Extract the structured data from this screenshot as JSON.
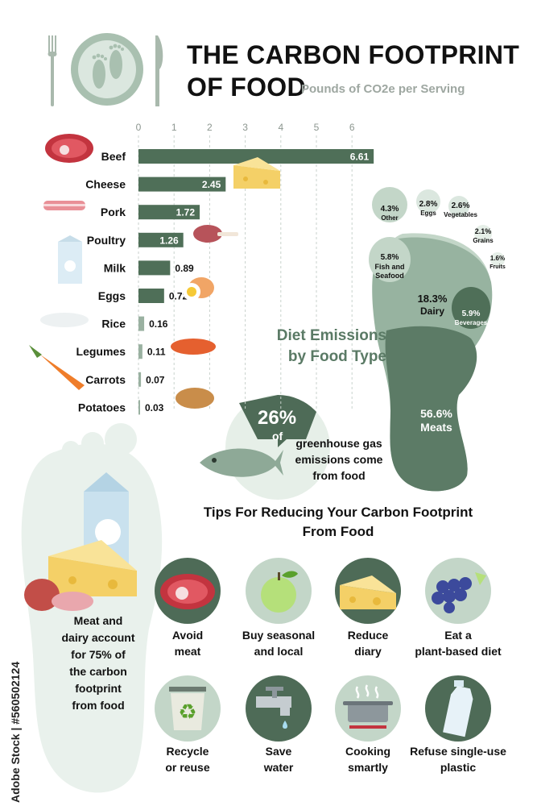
{
  "header": {
    "title_line1": "THE CARBON FOOTPRINT",
    "title_line2": "OF FOOD",
    "subtitle": "Pounds of CO2e per Serving"
  },
  "chart_data": [
    {
      "type": "bar",
      "orientation": "horizontal",
      "title": "THE CARBON FOOTPRINT OF FOOD",
      "subtitle": "Pounds of CO2e per Serving",
      "categories": [
        "Beef",
        "Cheese",
        "Pork",
        "Poultry",
        "Milk",
        "Eggs",
        "Rice",
        "Legumes",
        "Carrots",
        "Potatoes"
      ],
      "values": [
        6.61,
        2.45,
        1.72,
        1.26,
        0.89,
        0.72,
        0.16,
        0.11,
        0.07,
        0.03
      ],
      "value_labels": [
        "6.61",
        "2.45",
        "1.72",
        "1.26",
        "0.89",
        "0.72",
        "0.16",
        "0.11",
        "0.07",
        "0.03"
      ],
      "xticks": [
        "0",
        "1",
        "2",
        "3",
        "4",
        "5",
        "6"
      ],
      "xlim": [
        0,
        6.8
      ],
      "grid": true,
      "color": "#4f6f58"
    },
    {
      "type": "pie",
      "title": "Diet Emissions by Food Type",
      "slices": [
        {
          "label": "Meats",
          "value": 56.6,
          "text": "56.6%"
        },
        {
          "label": "Dairy",
          "value": 18.3,
          "text": "18.3%"
        },
        {
          "label": "Fish and Seafood",
          "value": 5.8,
          "text": "5.8%"
        },
        {
          "label": "Beverages",
          "value": 5.9,
          "text": "5.9%"
        },
        {
          "label": "Other",
          "value": 4.3,
          "text": "4.3%"
        },
        {
          "label": "Eggs",
          "value": 2.8,
          "text": "2.8%"
        },
        {
          "label": "Vegetables",
          "value": 2.6,
          "text": "2.6%"
        },
        {
          "label": "Grains",
          "value": 2.1,
          "text": "2.1%"
        },
        {
          "label": "Fruits",
          "value": 1.6,
          "text": "1.6%"
        }
      ]
    }
  ],
  "diet_title_line1": "Diet Emissions",
  "diet_title_line2": "by Food Type",
  "ghg": {
    "percent": "26%",
    "of": "of",
    "line1": "greenhouse gas",
    "line2": "emissions come",
    "line3": "from food"
  },
  "tips": {
    "title_line1": "Tips For Reducing Your Carbon Footprint",
    "title_line2": "From Food",
    "items": [
      {
        "icon": "steak-icon",
        "line1": "Avoid",
        "line2": "meat"
      },
      {
        "icon": "apple-icon",
        "line1": "Buy seasonal",
        "line2": "and local"
      },
      {
        "icon": "cheese-icon",
        "line1": "Reduce",
        "line2": "diary"
      },
      {
        "icon": "grapes-icon",
        "line1": "Eat a",
        "line2": "plant-based diet"
      },
      {
        "icon": "recycle-bin-icon",
        "line1": "Recycle",
        "line2": "or reuse"
      },
      {
        "icon": "faucet-icon",
        "line1": "Save",
        "line2": "water"
      },
      {
        "icon": "cooking-pot-icon",
        "line1": "Cooking",
        "line2": "smartly"
      },
      {
        "icon": "plastic-bottle-icon",
        "line1": "Refuse single-use",
        "line2": "plastic"
      }
    ]
  },
  "side_note": {
    "lines": [
      "Meat and",
      "dairy account",
      "for 75% of",
      "the carbon",
      "footprint",
      "from food"
    ]
  },
  "stock_id": "Adobe Stock | #560502124",
  "colors": {
    "bar": "#4f6f58",
    "dark_green": "#4e6b57",
    "mid_green": "#8eaa96",
    "light_green": "#c3d6c8",
    "pale_green": "#e6efe8",
    "meat_red": "#c3343f",
    "cheese_yellow": "#f4d067",
    "carrot_orange": "#ef7d2a"
  }
}
